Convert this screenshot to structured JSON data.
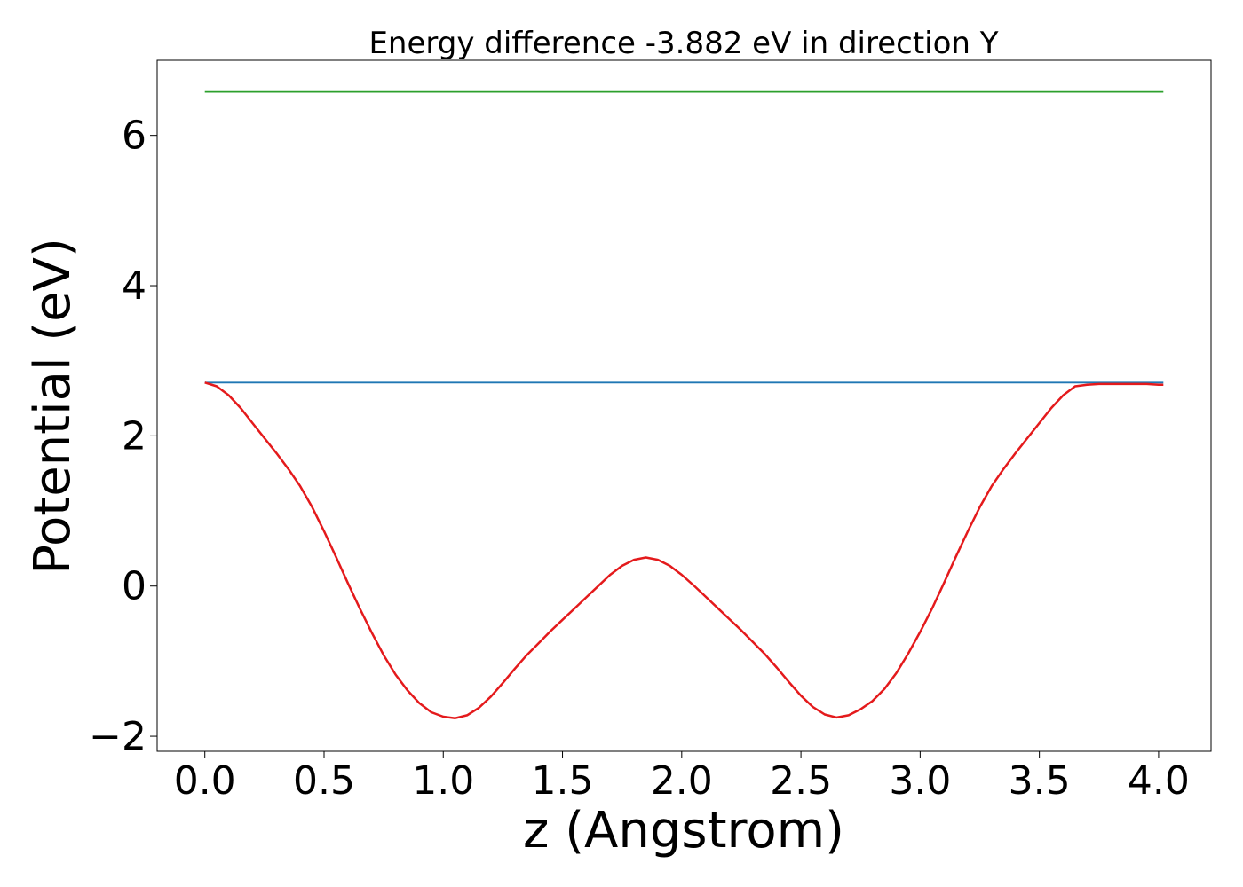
{
  "chart_data": {
    "type": "line",
    "title": "Energy difference -3.882 eV in direction Y",
    "xlabel": "z (Angstrom)",
    "ylabel": "Potential (eV)",
    "xlim": [
      -0.2,
      4.22
    ],
    "ylim": [
      -2.2,
      7.0
    ],
    "x_ticks": [
      0.0,
      0.5,
      1.0,
      1.5,
      2.0,
      2.5,
      3.0,
      3.5,
      4.0
    ],
    "x_tick_labels": [
      "0.0",
      "0.5",
      "1.0",
      "1.5",
      "2.0",
      "2.5",
      "3.0",
      "3.5",
      "4.0"
    ],
    "y_ticks": [
      -2,
      0,
      2,
      4,
      6
    ],
    "y_tick_labels": [
      "−2",
      "0",
      "2",
      "4",
      "6"
    ],
    "grid": false,
    "series": [
      {
        "color": "#2ca02c",
        "x": [
          0.0,
          4.02
        ],
        "y": [
          6.58,
          6.58
        ]
      },
      {
        "color": "#1f77b4",
        "x": [
          0.0,
          4.02
        ],
        "y": [
          2.71,
          2.71
        ]
      },
      {
        "color": "#e41a1c",
        "x": [
          0.0,
          0.05,
          0.1,
          0.15,
          0.2,
          0.25,
          0.3,
          0.35,
          0.4,
          0.45,
          0.5,
          0.55,
          0.6,
          0.65,
          0.7,
          0.75,
          0.8,
          0.85,
          0.9,
          0.95,
          1.0,
          1.05,
          1.1,
          1.15,
          1.2,
          1.25,
          1.3,
          1.35,
          1.4,
          1.45,
          1.5,
          1.55,
          1.6,
          1.65,
          1.7,
          1.75,
          1.8,
          1.85,
          1.9,
          1.95,
          2.0,
          2.05,
          2.1,
          2.15,
          2.2,
          2.25,
          2.3,
          2.35,
          2.4,
          2.45,
          2.5,
          2.55,
          2.6,
          2.65,
          2.7,
          2.75,
          2.8,
          2.85,
          2.9,
          2.95,
          3.0,
          3.05,
          3.1,
          3.15,
          3.2,
          3.25,
          3.3,
          3.35,
          3.4,
          3.45,
          3.5,
          3.55,
          3.6,
          3.65,
          3.7,
          3.75,
          3.8,
          3.85,
          3.9,
          3.95,
          4.0,
          4.02
        ],
        "y": [
          2.71,
          2.66,
          2.54,
          2.37,
          2.17,
          1.97,
          1.77,
          1.56,
          1.33,
          1.05,
          0.73,
          0.39,
          0.04,
          -0.3,
          -0.62,
          -0.92,
          -1.18,
          -1.39,
          -1.56,
          -1.68,
          -1.74,
          -1.76,
          -1.72,
          -1.62,
          -1.47,
          -1.29,
          -1.1,
          -0.92,
          -0.76,
          -0.6,
          -0.45,
          -0.3,
          -0.15,
          0.0,
          0.15,
          0.27,
          0.35,
          0.38,
          0.35,
          0.27,
          0.15,
          0.01,
          -0.14,
          -0.29,
          -0.44,
          -0.59,
          -0.75,
          -0.91,
          -1.09,
          -1.28,
          -1.46,
          -1.61,
          -1.71,
          -1.75,
          -1.72,
          -1.64,
          -1.53,
          -1.37,
          -1.16,
          -0.9,
          -0.61,
          -0.3,
          0.04,
          0.39,
          0.73,
          1.05,
          1.33,
          1.56,
          1.77,
          1.97,
          2.17,
          2.37,
          2.54,
          2.66,
          2.68,
          2.69,
          2.69,
          2.69,
          2.69,
          2.69,
          2.68,
          2.68
        ]
      }
    ]
  }
}
